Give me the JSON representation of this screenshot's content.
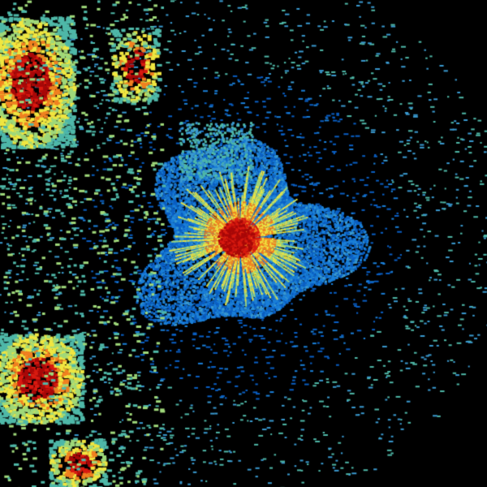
{
  "image": {
    "kind": "radar-reflectivity-plot",
    "background_color": "#000000",
    "palette": {
      "dark_blue": "#0a5fc4",
      "blue": "#1a7fd8",
      "light_blue": "#3a9ad0",
      "teal": "#4fb8a8",
      "light_green": "#9fd87a",
      "yellow": "#f0e640",
      "orange": "#f08020",
      "red": "#d81a10",
      "dark_red": "#a80808"
    }
  }
}
